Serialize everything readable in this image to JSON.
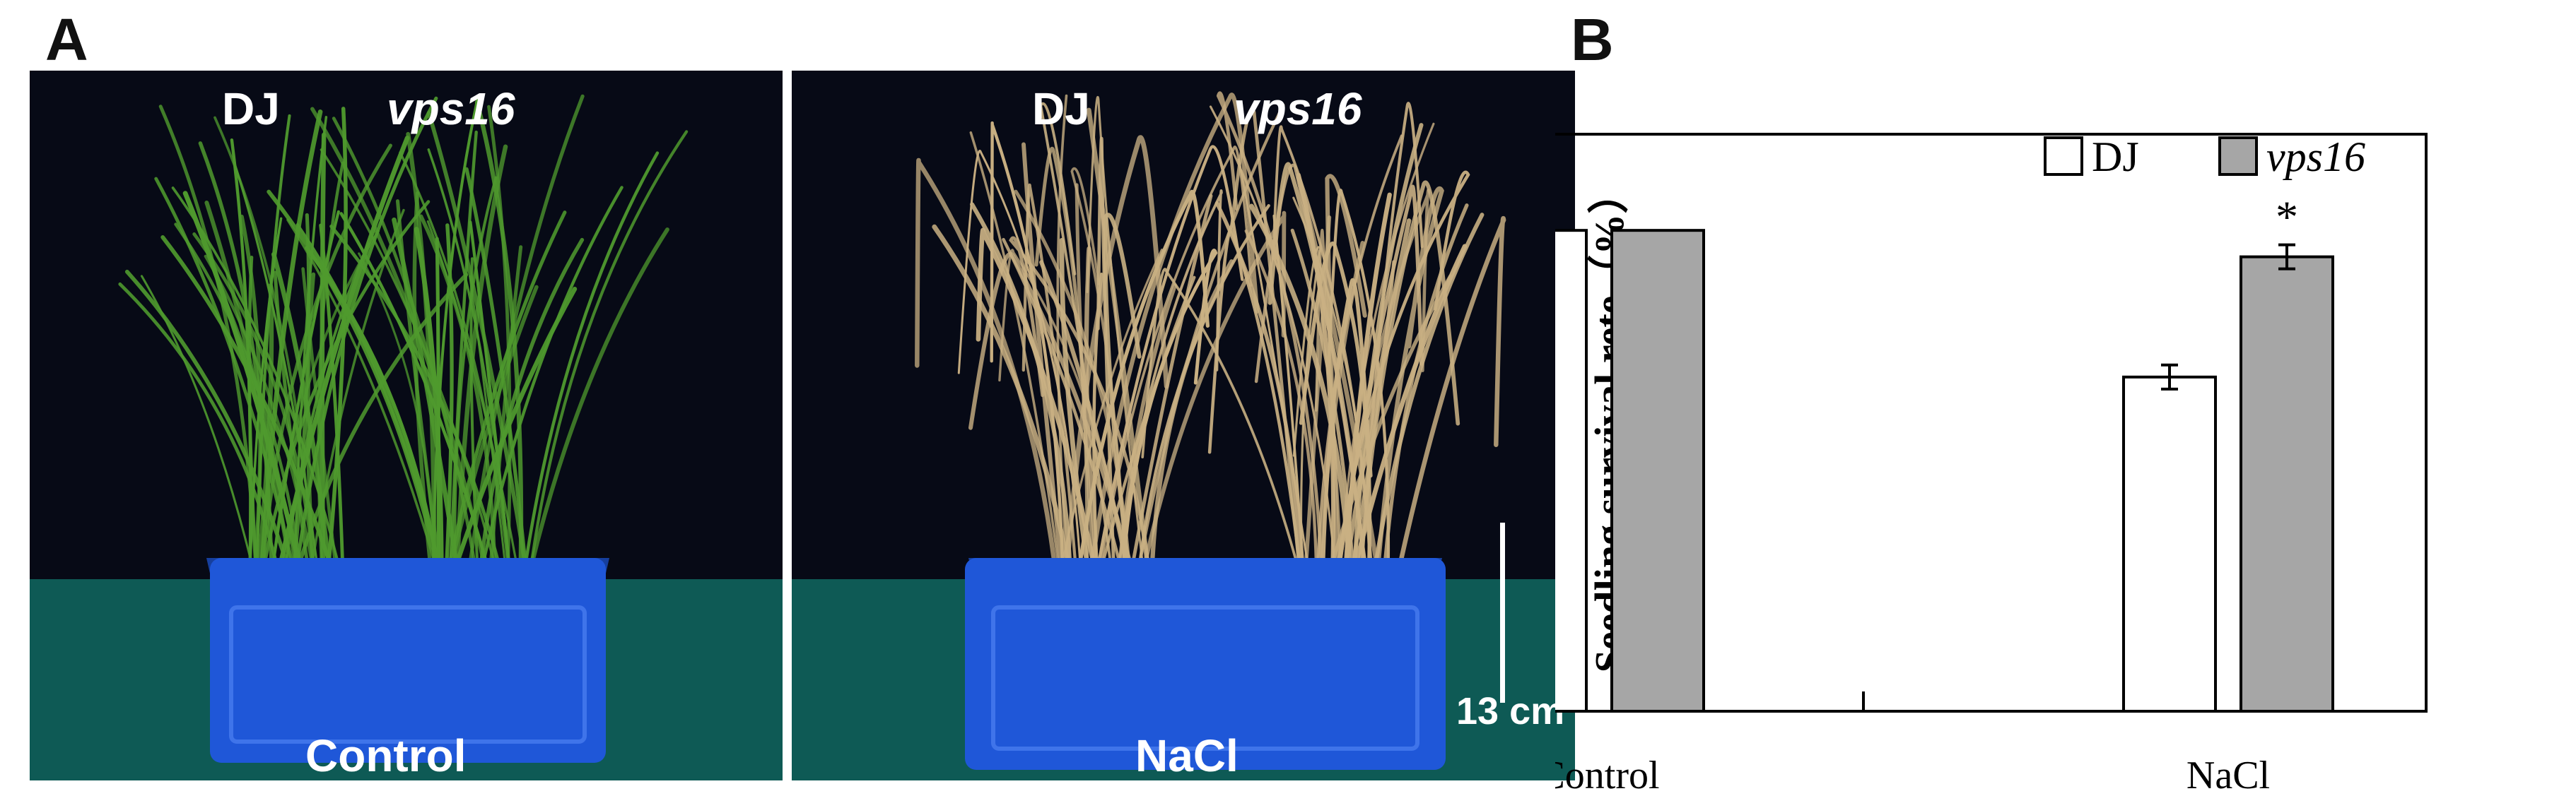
{
  "panels": {
    "a": "A",
    "b": "B"
  },
  "photos": [
    {
      "genotypes": [
        "DJ",
        "vps16"
      ],
      "condition": "Control",
      "leaf_color": "#4f9a2e",
      "box_color": "#1f57d8",
      "background_color": "#070a16",
      "floor_color": "#0e5a55"
    },
    {
      "genotypes": [
        "DJ",
        "vps16"
      ],
      "condition": "NaCl",
      "scale_bar": "13 cm",
      "leaf_color": "#c9b083",
      "box_color": "#1f57d8",
      "background_color": "#070a16",
      "floor_color": "#0e5a55"
    }
  ],
  "chart_data": {
    "type": "bar",
    "categories": [
      "Control",
      "NaCl"
    ],
    "series": [
      {
        "name": "DJ",
        "values": [
          100,
          69.5
        ],
        "errors": [
          0,
          2.5
        ],
        "color": "#ffffff"
      },
      {
        "name": "vps16",
        "values": [
          100,
          94.5
        ],
        "errors": [
          0,
          2.5
        ],
        "color": "#a6a6a6"
      }
    ],
    "ylabel": "Seedling survival rete（%）",
    "ylim": [
      0,
      120
    ],
    "yticks": [
      0,
      20,
      40,
      60,
      80,
      100,
      120
    ],
    "annotations": [
      {
        "category": "NaCl",
        "series": "vps16",
        "text": "*"
      }
    ],
    "legend": "top-right",
    "grid": false
  }
}
